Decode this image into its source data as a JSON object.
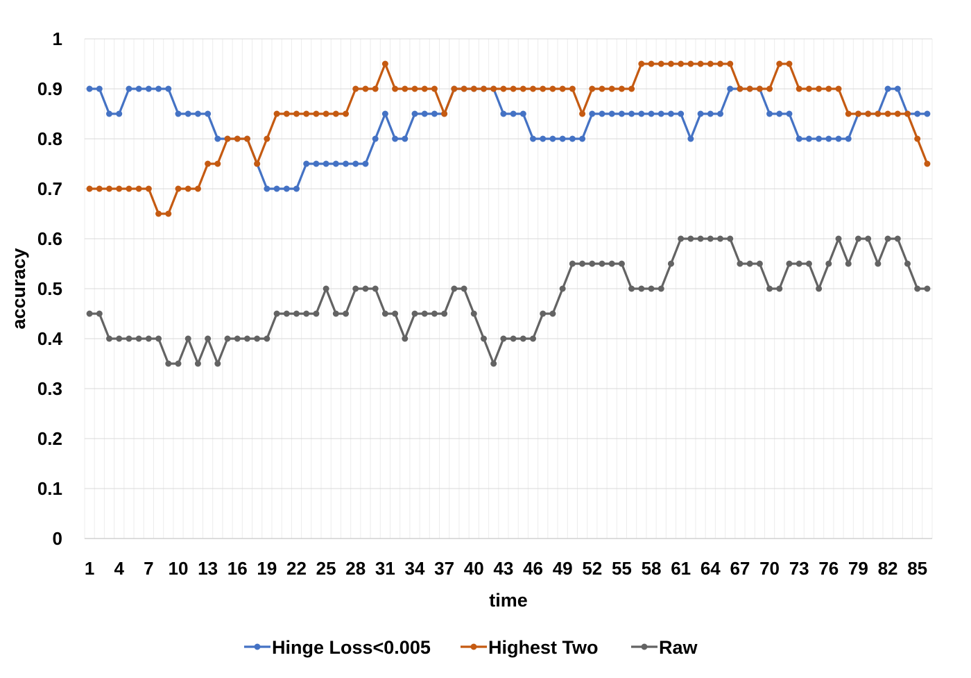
{
  "chart_data": {
    "type": "line",
    "title": "",
    "xlabel": "time",
    "ylabel": "accuracy",
    "ylim": [
      0,
      1
    ],
    "yticks": [
      "0",
      "0.1",
      "0.2",
      "0.3",
      "0.4",
      "0.5",
      "0.6",
      "0.7",
      "0.8",
      "0.9",
      "1"
    ],
    "x": [
      1,
      2,
      3,
      4,
      5,
      6,
      7,
      8,
      9,
      10,
      11,
      12,
      13,
      14,
      15,
      16,
      17,
      18,
      19,
      20,
      21,
      22,
      23,
      24,
      25,
      26,
      27,
      28,
      29,
      30,
      31,
      32,
      33,
      34,
      35,
      36,
      37,
      38,
      39,
      40,
      41,
      42,
      43,
      44,
      45,
      46,
      47,
      48,
      49,
      50,
      51,
      52,
      53,
      54,
      55,
      56,
      57,
      58,
      59,
      60,
      61,
      62,
      63,
      64,
      65,
      66,
      67,
      68,
      69,
      70,
      71,
      72,
      73,
      74,
      75,
      76,
      77,
      78,
      79,
      80,
      81,
      82,
      83,
      84,
      85,
      86
    ],
    "xticklabels": [
      "1",
      "4",
      "7",
      "10",
      "13",
      "16",
      "19",
      "22",
      "25",
      "28",
      "31",
      "34",
      "37",
      "40",
      "43",
      "46",
      "49",
      "52",
      "55",
      "58",
      "61",
      "64",
      "67",
      "70",
      "73",
      "76",
      "79",
      "82",
      "85"
    ],
    "grid": true,
    "legend_position": "bottom",
    "series": [
      {
        "name": "Hinge Loss<0.005",
        "color": "#4472C4",
        "values": [
          0.9,
          0.9,
          0.85,
          0.85,
          0.9,
          0.9,
          0.9,
          0.9,
          0.9,
          0.85,
          0.85,
          0.85,
          0.85,
          0.8,
          0.8,
          0.8,
          0.8,
          0.75,
          0.7,
          0.7,
          0.7,
          0.7,
          0.75,
          0.75,
          0.75,
          0.75,
          0.75,
          0.75,
          0.75,
          0.8,
          0.85,
          0.8,
          0.8,
          0.85,
          0.85,
          0.85,
          0.85,
          0.9,
          0.9,
          0.9,
          0.9,
          0.9,
          0.85,
          0.85,
          0.85,
          0.8,
          0.8,
          0.8,
          0.8,
          0.8,
          0.8,
          0.85,
          0.85,
          0.85,
          0.85,
          0.85,
          0.85,
          0.85,
          0.85,
          0.85,
          0.85,
          0.8,
          0.85,
          0.85,
          0.85,
          0.9,
          0.9,
          0.9,
          0.9,
          0.85,
          0.85,
          0.85,
          0.8,
          0.8,
          0.8,
          0.8,
          0.8,
          0.8,
          0.85,
          0.85,
          0.85,
          0.9,
          0.9,
          0.85,
          0.85,
          0.85
        ]
      },
      {
        "name": "Highest Two",
        "color": "#C55A11",
        "values": [
          0.7,
          0.7,
          0.7,
          0.7,
          0.7,
          0.7,
          0.7,
          0.65,
          0.65,
          0.7,
          0.7,
          0.7,
          0.75,
          0.75,
          0.8,
          0.8,
          0.8,
          0.75,
          0.8,
          0.85,
          0.85,
          0.85,
          0.85,
          0.85,
          0.85,
          0.85,
          0.85,
          0.9,
          0.9,
          0.9,
          0.95,
          0.9,
          0.9,
          0.9,
          0.9,
          0.9,
          0.85,
          0.9,
          0.9,
          0.9,
          0.9,
          0.9,
          0.9,
          0.9,
          0.9,
          0.9,
          0.9,
          0.9,
          0.9,
          0.9,
          0.85,
          0.9,
          0.9,
          0.9,
          0.9,
          0.9,
          0.95,
          0.95,
          0.95,
          0.95,
          0.95,
          0.95,
          0.95,
          0.95,
          0.95,
          0.95,
          0.9,
          0.9,
          0.9,
          0.9,
          0.95,
          0.95,
          0.9,
          0.9,
          0.9,
          0.9,
          0.9,
          0.85,
          0.85,
          0.85,
          0.85,
          0.85,
          0.85,
          0.85,
          0.8,
          0.75
        ]
      },
      {
        "name": "Raw",
        "color": "#636363",
        "values": [
          0.45,
          0.45,
          0.4,
          0.4,
          0.4,
          0.4,
          0.4,
          0.4,
          0.35,
          0.35,
          0.4,
          0.35,
          0.4,
          0.35,
          0.4,
          0.4,
          0.4,
          0.4,
          0.4,
          0.45,
          0.45,
          0.45,
          0.45,
          0.45,
          0.5,
          0.45,
          0.45,
          0.5,
          0.5,
          0.5,
          0.45,
          0.45,
          0.4,
          0.45,
          0.45,
          0.45,
          0.45,
          0.5,
          0.5,
          0.45,
          0.4,
          0.35,
          0.4,
          0.4,
          0.4,
          0.4,
          0.45,
          0.45,
          0.5,
          0.55,
          0.55,
          0.55,
          0.55,
          0.55,
          0.55,
          0.5,
          0.5,
          0.5,
          0.5,
          0.55,
          0.6,
          0.6,
          0.6,
          0.6,
          0.6,
          0.6,
          0.55,
          0.55,
          0.55,
          0.5,
          0.5,
          0.55,
          0.55,
          0.55,
          0.5,
          0.55,
          0.6,
          0.55,
          0.6,
          0.6,
          0.55,
          0.6,
          0.6,
          0.55,
          0.5,
          0.5
        ]
      }
    ]
  }
}
